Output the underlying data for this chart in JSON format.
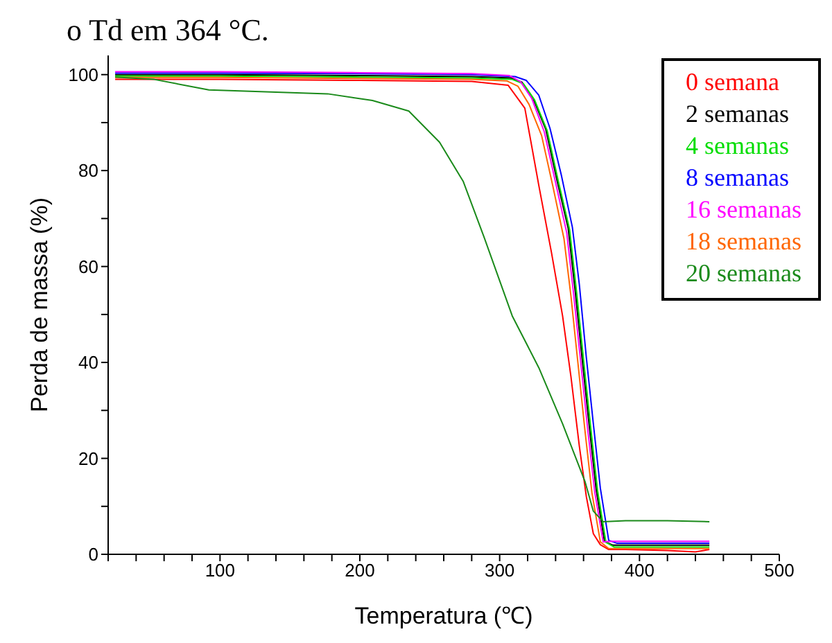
{
  "chart_data": {
    "type": "line",
    "xlabel": "Temperatura (℃)",
    "ylabel": "Perda de massa (%)",
    "annotations": [
      "o Td em 364 °C."
    ],
    "xlim": [
      20,
      500
    ],
    "ylim": [
      0,
      104
    ],
    "xticks": [
      {
        "value": 20,
        "label": null
      },
      {
        "value": 40,
        "label": null
      },
      {
        "value": 60,
        "label": null
      },
      {
        "value": 80,
        "label": null
      },
      100,
      {
        "value": 120,
        "label": null
      },
      {
        "value": 140,
        "label": null
      },
      {
        "value": 160,
        "label": null
      },
      {
        "value": 180,
        "label": null
      },
      200,
      {
        "value": 220,
        "label": null
      },
      {
        "value": 240,
        "label": null
      },
      {
        "value": 260,
        "label": null
      },
      {
        "value": 280,
        "label": null
      },
      300,
      {
        "value": 320,
        "label": null
      },
      {
        "value": 340,
        "label": null
      },
      {
        "value": 360,
        "label": null
      },
      {
        "value": 380,
        "label": null
      },
      400,
      {
        "value": 420,
        "label": null
      },
      {
        "value": 440,
        "label": null
      },
      {
        "value": 460,
        "label": null
      },
      {
        "value": 480,
        "label": null
      },
      500
    ],
    "yticks": [
      0,
      {
        "value": 10,
        "label": null
      },
      20,
      {
        "value": 30,
        "label": null
      },
      40,
      {
        "value": 50,
        "label": null
      },
      60,
      {
        "value": 70,
        "label": null
      },
      80,
      {
        "value": 90,
        "label": null
      },
      100
    ],
    "grid": false,
    "legend": "top right",
    "marker": "none",
    "line_style": "solid",
    "series": [
      {
        "name": "0 semana",
        "color": "#ff0000",
        "x": [
          25,
          100,
          200,
          280,
          306,
          318,
          328,
          337,
          345,
          351,
          357,
          362,
          367,
          372,
          378,
          390,
          420,
          440,
          450
        ],
        "values": [
          99,
          99,
          98.8,
          98.6,
          97.8,
          93,
          76.9,
          63,
          49.7,
          37,
          22.5,
          12,
          4.3,
          2,
          1,
          1,
          0.8,
          0.5,
          1
        ]
      },
      {
        "name": "2 semanas",
        "color": "#000000",
        "x": [
          25,
          100,
          200,
          280,
          308,
          316,
          324,
          333,
          341,
          349,
          354,
          359,
          364,
          369,
          375,
          381,
          400,
          450
        ],
        "values": [
          100,
          100,
          99.8,
          99.6,
          99.3,
          98.4,
          95,
          88.6,
          78,
          68,
          55,
          40.8,
          27,
          13.6,
          2.7,
          1.9,
          1.9,
          1.9
        ]
      },
      {
        "name": "4 semanas",
        "color": "#00dd00",
        "x": [
          25,
          100,
          200,
          280,
          309,
          317,
          325,
          334,
          342,
          350,
          355,
          360,
          365,
          370,
          376,
          382,
          400,
          450
        ],
        "values": [
          99.7,
          99.7,
          99.5,
          99.3,
          99,
          98.1,
          94.7,
          88.3,
          77.7,
          67.7,
          54.7,
          40.5,
          26.7,
          13.3,
          2.5,
          1.5,
          1.5,
          1.5
        ]
      },
      {
        "name": "8 semanas",
        "color": "#0000ff",
        "x": [
          25,
          100,
          200,
          280,
          311,
          319,
          328,
          336,
          344,
          352,
          357,
          362,
          367,
          372,
          378,
          384,
          400,
          450
        ],
        "values": [
          100.3,
          100.3,
          100.2,
          100,
          99.6,
          98.8,
          95.7,
          88.8,
          79.2,
          68.2,
          56.2,
          41,
          27.2,
          13.8,
          2.9,
          2.3,
          2.3,
          2.3
        ]
      },
      {
        "name": "16 semanas",
        "color": "#ff00ff",
        "x": [
          25,
          100,
          200,
          280,
          307,
          315,
          323,
          332,
          340,
          348,
          353,
          358,
          363,
          368,
          374,
          380,
          400,
          450
        ],
        "values": [
          100.6,
          100.6,
          100.4,
          100.2,
          99.8,
          98.5,
          95,
          88,
          77.5,
          67,
          54,
          40,
          26,
          13,
          2.6,
          2.7,
          2.7,
          2.7
        ]
      },
      {
        "name": "18 semanas",
        "color": "#ff6600",
        "x": [
          25,
          100,
          200,
          280,
          305,
          313,
          321,
          330,
          338,
          346,
          351,
          356,
          361,
          366,
          372,
          378,
          400,
          450
        ],
        "values": [
          99.4,
          99.4,
          99.2,
          99,
          98.7,
          97.6,
          93.8,
          87.3,
          76.8,
          65.8,
          53.8,
          39.8,
          25.8,
          12.8,
          2.6,
          1.2,
          1.2,
          1.2
        ]
      },
      {
        "name": "20 semanas",
        "color": "#1a8a1a",
        "x": [
          25,
          53,
          92,
          177,
          209,
          235,
          257,
          274,
          289,
          309,
          328,
          345,
          361,
          367,
          374,
          390,
          420,
          450
        ],
        "values": [
          99.5,
          99,
          96.8,
          96,
          94.6,
          92.4,
          85.9,
          77.7,
          66,
          49.7,
          38.9,
          27.2,
          15.2,
          9,
          6.8,
          7,
          7,
          6.8
        ]
      }
    ]
  }
}
